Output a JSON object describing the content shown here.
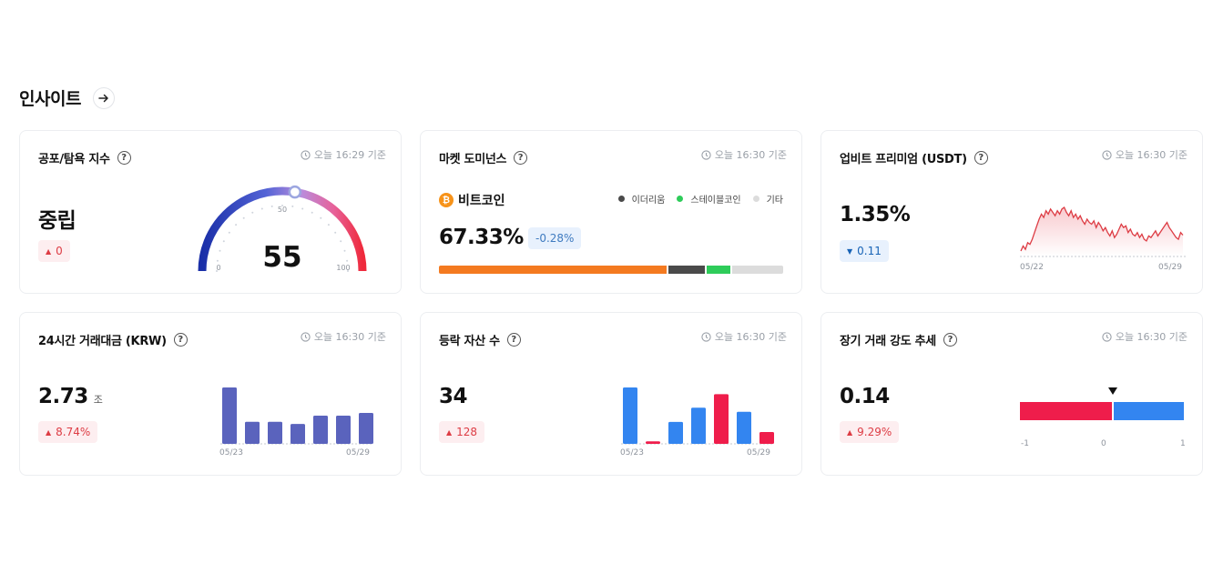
{
  "header": {
    "title": "인사이트"
  },
  "timestamps": {
    "t1629": "오늘 16:29 기준",
    "t1630": "오늘 16:30 기준"
  },
  "help_symbol": "?",
  "fear_greed": {
    "title": "공포/탐욕 지수",
    "status": "중립",
    "change": "0",
    "change_direction": "up",
    "value": "55",
    "gauge": {
      "min": "0",
      "mid": "50",
      "max": "100",
      "level": 55
    }
  },
  "dominance": {
    "title": "마켓 도미넌스",
    "coin_name": "비트코인",
    "value": "67.33%",
    "change": "-0.28%",
    "legend": [
      {
        "label": "이더리움",
        "color": "#4a4a4a"
      },
      {
        "label": "스테이블코인",
        "color": "#2ecc5a"
      },
      {
        "label": "기타",
        "color": "#dcdcdc"
      }
    ],
    "segments": [
      {
        "name": "비트코인",
        "color": "#f47a20",
        "share": 67.33
      },
      {
        "name": "이더리움",
        "color": "#4a4a4a",
        "share": 10.5
      },
      {
        "name": "스테이블코인",
        "color": "#2ecc5a",
        "share": 7.2
      },
      {
        "name": "기타",
        "color": "#dcdcdc",
        "share": 14.97
      }
    ]
  },
  "premium": {
    "title": "업비트 프리미엄 (USDT)",
    "value": "1.35%",
    "change": "0.11",
    "change_direction": "down",
    "x_start": "05/22",
    "x_end": "05/29"
  },
  "volume": {
    "title": "24시간 거래대금 (KRW)",
    "value": "2.73",
    "unit": "조",
    "change": "8.74%",
    "change_direction": "up",
    "x_start": "05/23",
    "x_end": "05/29"
  },
  "advancers": {
    "title": "등락 자산 수",
    "value": "34",
    "change": "128",
    "change_direction": "up",
    "x_start": "05/23",
    "x_end": "05/29"
  },
  "strength": {
    "title": "장기 거래 강도 추세",
    "value": "0.14",
    "change": "9.29%",
    "change_direction": "up",
    "axis": {
      "min": "-1",
      "mid": "0",
      "max": "1"
    },
    "indicator": 0.14
  },
  "chart_data": [
    {
      "type": "line",
      "title": "",
      "x_ticks": [
        "05/22",
        "05/29"
      ],
      "values": [
        0.4,
        0.7,
        0.5,
        0.9,
        0.8,
        1.1,
        1.5,
        1.9,
        2.3,
        2.6,
        2.4,
        2.8,
        2.6,
        2.9,
        2.7,
        2.5,
        2.8,
        2.6,
        2.9,
        3.0,
        2.7,
        2.5,
        2.8,
        2.4,
        2.6,
        2.3,
        2.5,
        2.2,
        2.0,
        2.3,
        2.1,
        2.0,
        2.2,
        1.8,
        2.1,
        1.9,
        1.6,
        1.8,
        1.5,
        1.3,
        1.6,
        1.2,
        1.4,
        1.7,
        2.0,
        1.8,
        1.9,
        1.5,
        1.7,
        1.4,
        1.3,
        1.5,
        1.2,
        1.4,
        1.1,
        1.0,
        1.3,
        1.2,
        1.4,
        1.6,
        1.3,
        1.5,
        1.7,
        1.9,
        2.1,
        1.8,
        1.6,
        1.4,
        1.2,
        1.1,
        1.5,
        1.35
      ],
      "color": "#dd3c44"
    },
    {
      "type": "bar",
      "title": "",
      "categories": [
        "05/23",
        "",
        "",
        "",
        "",
        "",
        "05/29"
      ],
      "values": [
        4.1,
        1.6,
        1.6,
        1.45,
        2.05,
        2.05,
        2.25
      ],
      "color": "#5a63bd"
    },
    {
      "type": "bar",
      "title": "",
      "categories": [
        "05/23",
        "",
        "",
        "",
        "",
        "",
        "05/29"
      ],
      "values": [
        67,
        3,
        26,
        43,
        59,
        38,
        14
      ],
      "colors": [
        "#3385f0",
        "#ef1d4b",
        "#3385f0",
        "#3385f0",
        "#ef1d4b",
        "#3385f0",
        "#ef1d4b"
      ]
    }
  ]
}
